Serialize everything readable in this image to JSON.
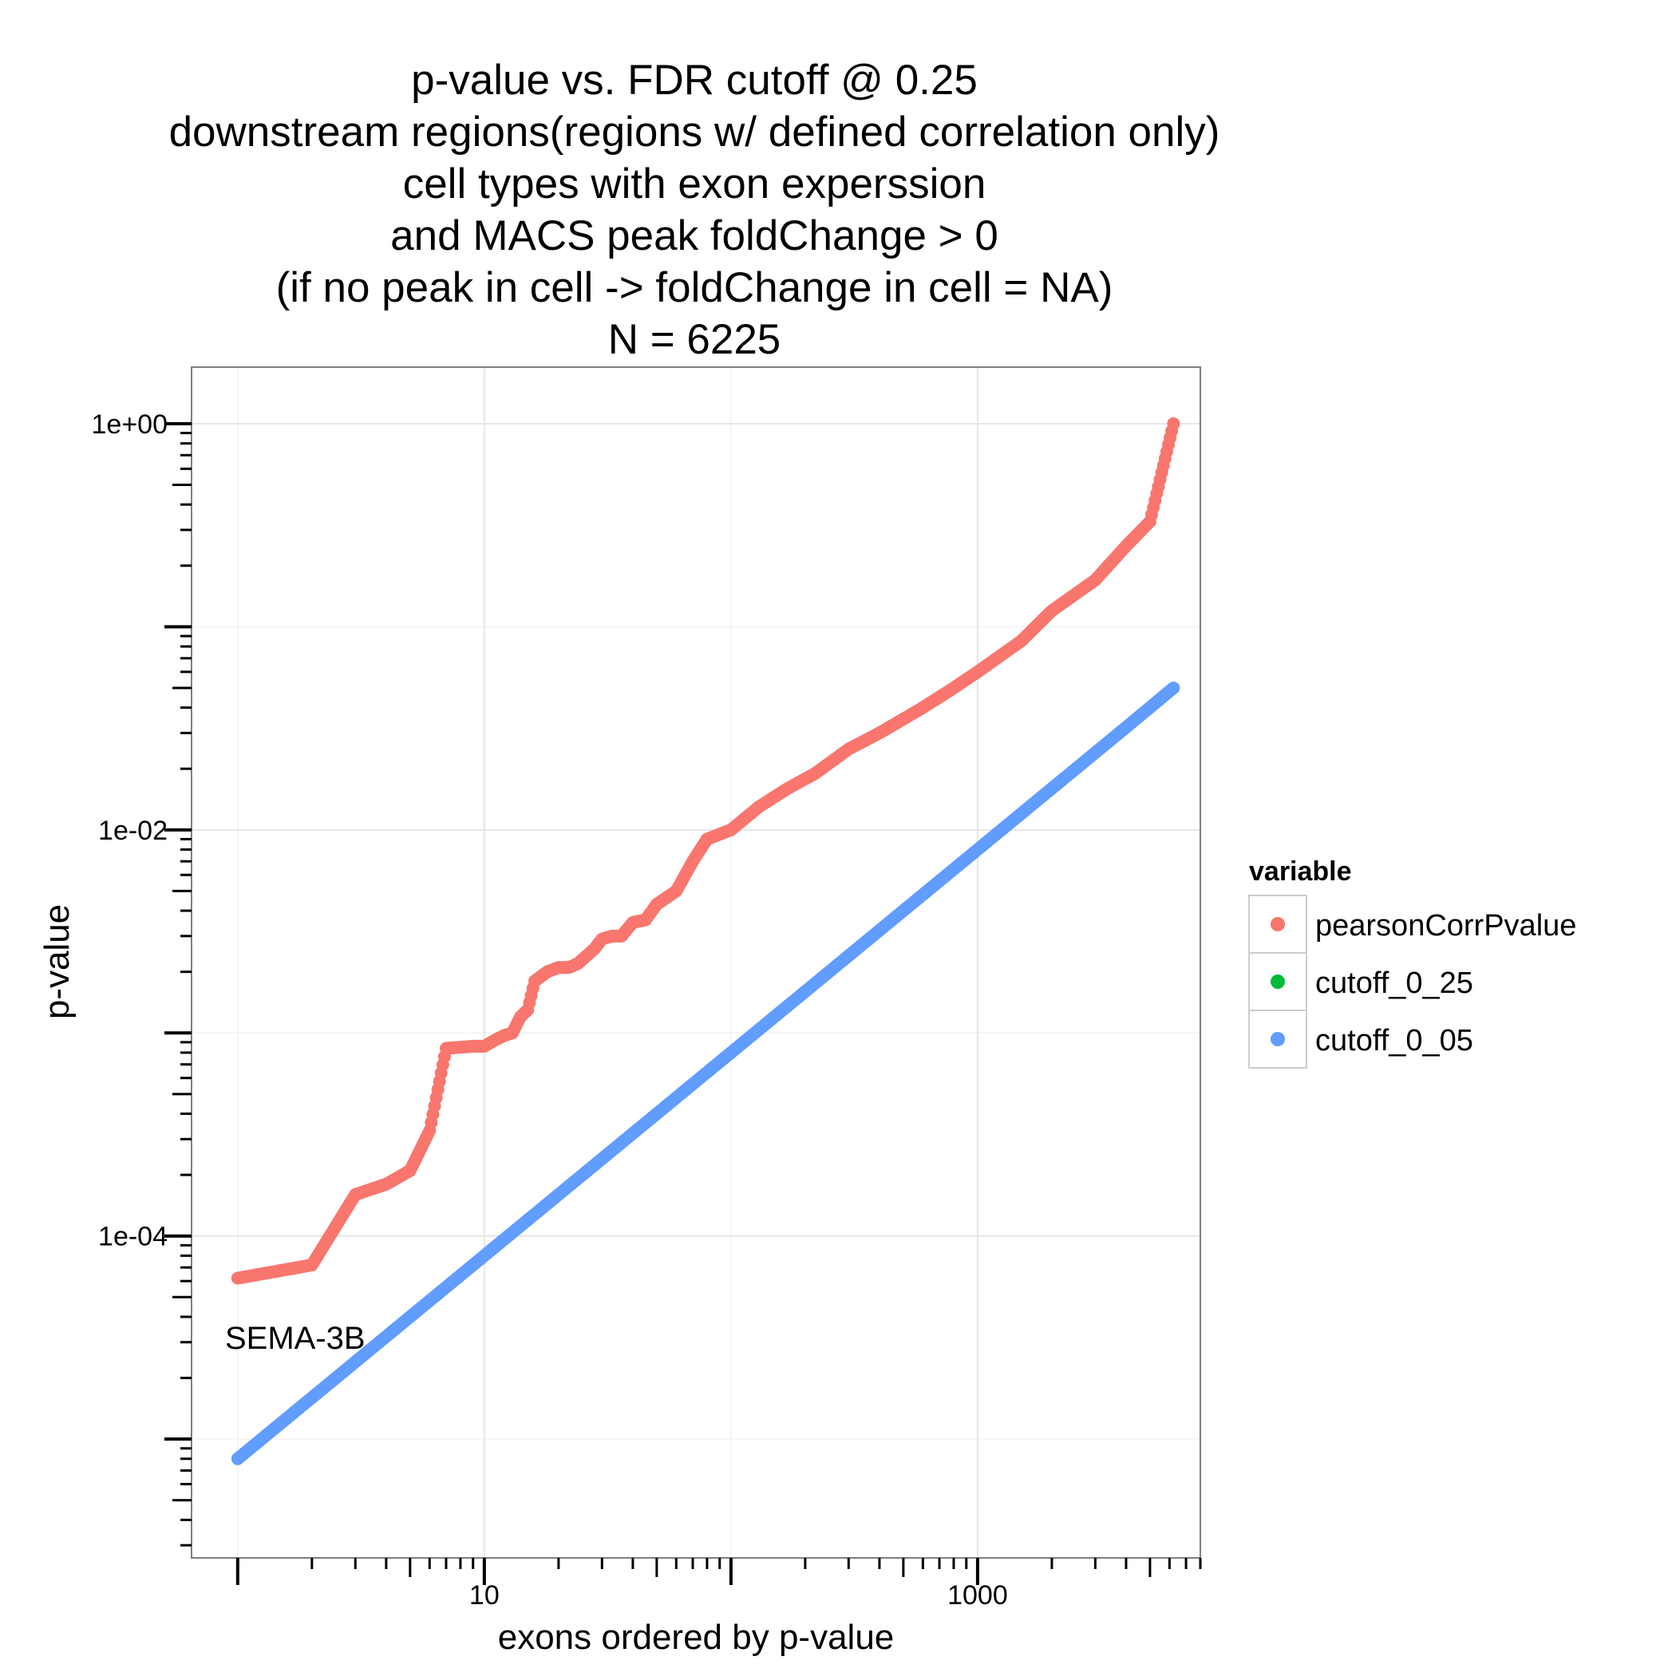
{
  "chart_data": {
    "type": "scatter",
    "title": [
      "p-value vs. FDR cutoff @ 0.25",
      "downstream regions(regions w/ defined correlation only)",
      "cell types with exon experssion",
      "and MACS peak foldChange > 0",
      "(if no peak in cell  -> foldChange in cell = NA)",
      "N = 6225"
    ],
    "xlabel": "exons ordered by p-value",
    "ylabel": "p-value",
    "x_scale": "log10",
    "y_scale": "log10",
    "xlim": [
      0.65,
      8000
    ],
    "ylim": [
      2.6e-06,
      1.9
    ],
    "x_ticks": [
      10,
      1000
    ],
    "x_tick_labels": [
      "10",
      "1000"
    ],
    "y_ticks": [
      1,
      0.01,
      0.0001
    ],
    "y_tick_labels": [
      "1e+00",
      "1e-02",
      "1e-04"
    ],
    "grid": true,
    "legend": {
      "title": "variable",
      "position": "right",
      "entries": [
        {
          "name": "pearsonCorrPvalue",
          "color": "#F8766D"
        },
        {
          "name": "cutoff_0_25",
          "color": "#00BA38"
        },
        {
          "name": "cutoff_0_05",
          "color": "#619CFF"
        }
      ]
    },
    "annotations": [
      {
        "text": "SEMA-3B",
        "x": 1,
        "y": 5.7e-05
      }
    ],
    "series": [
      {
        "name": "pearsonCorrPvalue",
        "color": "#F8766D",
        "points": [
          [
            1,
            6.2e-05
          ],
          [
            2,
            7.2e-05
          ],
          [
            3,
            0.00016
          ],
          [
            4,
            0.00018
          ],
          [
            5,
            0.00021
          ],
          [
            6,
            0.00033
          ],
          [
            7,
            0.00084
          ],
          [
            8,
            0.00085
          ],
          [
            9,
            0.00086
          ],
          [
            10,
            0.00086
          ],
          [
            11,
            0.00092
          ],
          [
            12,
            0.00097
          ],
          [
            13,
            0.001
          ],
          [
            14,
            0.0012
          ],
          [
            15,
            0.0013
          ],
          [
            16,
            0.0018
          ],
          [
            17,
            0.0019
          ],
          [
            18,
            0.002
          ],
          [
            20,
            0.0021
          ],
          [
            22,
            0.0021
          ],
          [
            24,
            0.0022
          ],
          [
            26,
            0.0024
          ],
          [
            28,
            0.0026
          ],
          [
            30,
            0.0029
          ],
          [
            33,
            0.003
          ],
          [
            36,
            0.003
          ],
          [
            40,
            0.0035
          ],
          [
            45,
            0.0036
          ],
          [
            50,
            0.0043
          ],
          [
            60,
            0.005
          ],
          [
            70,
            0.007
          ],
          [
            80,
            0.009
          ],
          [
            100,
            0.01
          ],
          [
            130,
            0.013
          ],
          [
            170,
            0.016
          ],
          [
            220,
            0.019
          ],
          [
            300,
            0.025
          ],
          [
            400,
            0.03
          ],
          [
            600,
            0.04
          ],
          [
            800,
            0.05
          ],
          [
            1000,
            0.06
          ],
          [
            1500,
            0.085
          ],
          [
            2000,
            0.12
          ],
          [
            3000,
            0.17
          ],
          [
            4000,
            0.25
          ],
          [
            5000,
            0.33
          ],
          [
            6225,
            1.0
          ]
        ]
      },
      {
        "name": "cutoff_0_25",
        "color": "#00BA38",
        "points": []
      },
      {
        "name": "cutoff_0_05",
        "color": "#619CFF",
        "points": [
          [
            1,
            8e-06
          ],
          [
            2,
            1.6e-05
          ],
          [
            3,
            2.4e-05
          ],
          [
            4,
            3.2e-05
          ],
          [
            5,
            4e-05
          ],
          [
            6,
            4.8e-05
          ],
          [
            7,
            5.6e-05
          ],
          [
            8,
            6.4e-05
          ],
          [
            9,
            7.2e-05
          ],
          [
            10,
            8e-05
          ],
          [
            12,
            9.6e-05
          ],
          [
            15,
            0.00012
          ],
          [
            20,
            0.00016
          ],
          [
            30,
            0.00024
          ],
          [
            50,
            0.0004
          ],
          [
            100,
            0.0008
          ],
          [
            200,
            0.0016
          ],
          [
            500,
            0.004
          ],
          [
            1000,
            0.008
          ],
          [
            2000,
            0.016
          ],
          [
            4000,
            0.032
          ],
          [
            6225,
            0.05
          ]
        ]
      }
    ]
  }
}
